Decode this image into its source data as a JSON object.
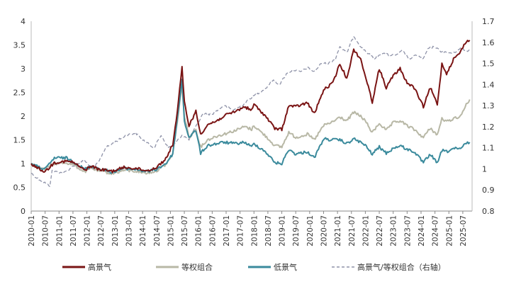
{
  "chart_data": {
    "type": "line",
    "title": "",
    "xlabel": "",
    "ylabel": "",
    "x_start": "2010-01",
    "x_end": "2025-10",
    "x_tick_labels": [
      "2010-01",
      "2010-07",
      "2011-01",
      "2011-07",
      "2012-01",
      "2012-07",
      "2013-01",
      "2013-07",
      "2014-01",
      "2014-07",
      "2015-01",
      "2015-07",
      "2016-01",
      "2016-07",
      "2017-01",
      "2017-07",
      "2018-01",
      "2018-07",
      "2019-01",
      "2019-07",
      "2020-01",
      "2020-07",
      "2021-01",
      "2021-07",
      "2022-01",
      "2022-07",
      "2023-01",
      "2023-07",
      "2024-01",
      "2024-07",
      "2025-01",
      "2025-07"
    ],
    "y_left": {
      "min": 0,
      "max": 4,
      "ticks": [
        "0",
        "0.5",
        "1",
        "1.5",
        "2",
        "2.5",
        "3",
        "3.5",
        "4"
      ]
    },
    "y_right": {
      "min": 0.8,
      "max": 1.7,
      "ticks": [
        "0.8",
        "0.9",
        "1",
        "1.1",
        "1.2",
        "1.3",
        "1.4",
        "1.5",
        "1.6",
        "1.7"
      ]
    },
    "series": [
      {
        "name": "高景气",
        "axis": "left",
        "color": "#7a1414",
        "dash": "none",
        "points": [
          [
            "2010-01",
            1.0
          ],
          [
            "2010-04",
            0.9
          ],
          [
            "2010-07",
            0.83
          ],
          [
            "2010-11",
            1.02
          ],
          [
            "2011-04",
            1.05
          ],
          [
            "2011-07",
            1.03
          ],
          [
            "2011-12",
            0.86
          ],
          [
            "2012-03",
            0.95
          ],
          [
            "2012-06",
            0.88
          ],
          [
            "2012-12",
            0.84
          ],
          [
            "2013-05",
            0.92
          ],
          [
            "2013-10",
            0.9
          ],
          [
            "2014-03",
            0.85
          ],
          [
            "2014-07",
            0.92
          ],
          [
            "2014-11",
            1.1
          ],
          [
            "2015-02",
            1.4
          ],
          [
            "2015-04",
            2.1
          ],
          [
            "2015-06",
            3.02
          ],
          [
            "2015-07",
            2.3
          ],
          [
            "2015-09",
            1.8
          ],
          [
            "2015-12",
            2.1
          ],
          [
            "2016-02",
            1.62
          ],
          [
            "2016-05",
            1.82
          ],
          [
            "2016-09",
            1.9
          ],
          [
            "2016-12",
            2.0
          ],
          [
            "2017-05",
            2.1
          ],
          [
            "2017-09",
            2.2
          ],
          [
            "2017-12",
            2.12
          ],
          [
            "2018-01",
            2.25
          ],
          [
            "2018-06",
            2.0
          ],
          [
            "2018-10",
            1.74
          ],
          [
            "2019-01",
            1.72
          ],
          [
            "2019-04",
            2.22
          ],
          [
            "2019-07",
            2.2
          ],
          [
            "2019-12",
            2.28
          ],
          [
            "2020-03",
            2.05
          ],
          [
            "2020-07",
            2.55
          ],
          [
            "2020-11",
            2.7
          ],
          [
            "2021-02",
            3.1
          ],
          [
            "2021-05",
            2.8
          ],
          [
            "2021-08",
            3.4
          ],
          [
            "2021-11",
            3.2
          ],
          [
            "2022-01",
            2.85
          ],
          [
            "2022-04",
            2.3
          ],
          [
            "2022-07",
            3.0
          ],
          [
            "2022-10",
            2.6
          ],
          [
            "2023-01",
            2.85
          ],
          [
            "2023-04",
            3.0
          ],
          [
            "2023-07",
            2.7
          ],
          [
            "2023-10",
            2.6
          ],
          [
            "2024-02",
            2.2
          ],
          [
            "2024-05",
            2.6
          ],
          [
            "2024-08",
            2.25
          ],
          [
            "2024-10",
            3.1
          ],
          [
            "2024-12",
            2.9
          ],
          [
            "2025-03",
            3.2
          ],
          [
            "2025-06",
            3.35
          ],
          [
            "2025-08",
            3.55
          ],
          [
            "2025-10",
            3.6
          ]
        ]
      },
      {
        "name": "等权组合",
        "axis": "left",
        "color": "#b8b8a6",
        "dash": "none",
        "points": [
          [
            "2010-01",
            1.0
          ],
          [
            "2010-04",
            0.92
          ],
          [
            "2010-07",
            0.88
          ],
          [
            "2010-11",
            1.0
          ],
          [
            "2011-04",
            1.02
          ],
          [
            "2011-07",
            0.98
          ],
          [
            "2011-12",
            0.83
          ],
          [
            "2012-03",
            0.9
          ],
          [
            "2012-06",
            0.85
          ],
          [
            "2012-12",
            0.79
          ],
          [
            "2013-05",
            0.86
          ],
          [
            "2013-10",
            0.84
          ],
          [
            "2014-03",
            0.8
          ],
          [
            "2014-07",
            0.85
          ],
          [
            "2014-11",
            0.98
          ],
          [
            "2015-02",
            1.2
          ],
          [
            "2015-04",
            1.9
          ],
          [
            "2015-06",
            2.65
          ],
          [
            "2015-07",
            2.0
          ],
          [
            "2015-09",
            1.55
          ],
          [
            "2015-12",
            1.72
          ],
          [
            "2016-02",
            1.35
          ],
          [
            "2016-05",
            1.5
          ],
          [
            "2016-09",
            1.58
          ],
          [
            "2016-12",
            1.62
          ],
          [
            "2017-05",
            1.7
          ],
          [
            "2017-09",
            1.78
          ],
          [
            "2017-12",
            1.72
          ],
          [
            "2018-01",
            1.8
          ],
          [
            "2018-06",
            1.58
          ],
          [
            "2018-10",
            1.38
          ],
          [
            "2019-01",
            1.35
          ],
          [
            "2019-04",
            1.66
          ],
          [
            "2019-07",
            1.55
          ],
          [
            "2019-12",
            1.62
          ],
          [
            "2020-03",
            1.5
          ],
          [
            "2020-07",
            1.8
          ],
          [
            "2020-11",
            1.88
          ],
          [
            "2021-02",
            1.98
          ],
          [
            "2021-05",
            1.9
          ],
          [
            "2021-08",
            2.08
          ],
          [
            "2021-11",
            2.0
          ],
          [
            "2022-01",
            1.9
          ],
          [
            "2022-04",
            1.65
          ],
          [
            "2022-07",
            1.85
          ],
          [
            "2022-10",
            1.7
          ],
          [
            "2023-01",
            1.86
          ],
          [
            "2023-04",
            1.9
          ],
          [
            "2023-07",
            1.8
          ],
          [
            "2023-10",
            1.72
          ],
          [
            "2024-02",
            1.55
          ],
          [
            "2024-05",
            1.75
          ],
          [
            "2024-08",
            1.6
          ],
          [
            "2024-10",
            1.95
          ],
          [
            "2024-12",
            1.88
          ],
          [
            "2025-03",
            1.95
          ],
          [
            "2025-06",
            2.0
          ],
          [
            "2025-08",
            2.2
          ],
          [
            "2025-10",
            2.35
          ]
        ]
      },
      {
        "name": "低景气",
        "axis": "left",
        "color": "#3a8a9c",
        "dash": "none",
        "points": [
          [
            "2010-01",
            1.0
          ],
          [
            "2010-04",
            0.93
          ],
          [
            "2010-07",
            0.88
          ],
          [
            "2010-11",
            1.12
          ],
          [
            "2011-04",
            1.12
          ],
          [
            "2011-07",
            1.05
          ],
          [
            "2011-12",
            0.88
          ],
          [
            "2012-03",
            0.95
          ],
          [
            "2012-06",
            0.9
          ],
          [
            "2012-12",
            0.82
          ],
          [
            "2013-05",
            0.9
          ],
          [
            "2013-10",
            0.88
          ],
          [
            "2014-03",
            0.83
          ],
          [
            "2014-07",
            0.88
          ],
          [
            "2014-11",
            1.0
          ],
          [
            "2015-02",
            1.2
          ],
          [
            "2015-04",
            1.95
          ],
          [
            "2015-06",
            2.78
          ],
          [
            "2015-07",
            1.9
          ],
          [
            "2015-09",
            1.55
          ],
          [
            "2015-12",
            1.7
          ],
          [
            "2016-02",
            1.22
          ],
          [
            "2016-05",
            1.38
          ],
          [
            "2016-09",
            1.42
          ],
          [
            "2016-12",
            1.45
          ],
          [
            "2017-05",
            1.42
          ],
          [
            "2017-09",
            1.45
          ],
          [
            "2017-12",
            1.35
          ],
          [
            "2018-01",
            1.42
          ],
          [
            "2018-06",
            1.25
          ],
          [
            "2018-10",
            1.02
          ],
          [
            "2019-01",
            1.0
          ],
          [
            "2019-04",
            1.3
          ],
          [
            "2019-07",
            1.2
          ],
          [
            "2019-12",
            1.25
          ],
          [
            "2020-03",
            1.12
          ],
          [
            "2020-07",
            1.52
          ],
          [
            "2020-11",
            1.5
          ],
          [
            "2021-02",
            1.5
          ],
          [
            "2021-05",
            1.42
          ],
          [
            "2021-08",
            1.52
          ],
          [
            "2021-11",
            1.45
          ],
          [
            "2022-01",
            1.38
          ],
          [
            "2022-04",
            1.2
          ],
          [
            "2022-07",
            1.35
          ],
          [
            "2022-10",
            1.22
          ],
          [
            "2023-01",
            1.32
          ],
          [
            "2023-04",
            1.38
          ],
          [
            "2023-07",
            1.3
          ],
          [
            "2023-10",
            1.25
          ],
          [
            "2024-02",
            1.02
          ],
          [
            "2024-05",
            1.2
          ],
          [
            "2024-08",
            1.0
          ],
          [
            "2024-10",
            1.28
          ],
          [
            "2024-12",
            1.25
          ],
          [
            "2025-03",
            1.32
          ],
          [
            "2025-06",
            1.3
          ],
          [
            "2025-08",
            1.42
          ],
          [
            "2025-10",
            1.45
          ]
        ]
      },
      {
        "name": "高景气/等权组合（右轴）",
        "axis": "right",
        "color": "#8e92a8",
        "dash": "5,3",
        "points": [
          [
            "2010-01",
            0.98
          ],
          [
            "2010-03",
            0.96
          ],
          [
            "2010-06",
            0.94
          ],
          [
            "2010-09",
            0.92
          ],
          [
            "2010-10",
            0.99
          ],
          [
            "2011-03",
            0.98
          ],
          [
            "2011-08",
            1.02
          ],
          [
            "2011-12",
            1.04
          ],
          [
            "2012-03",
            1.0
          ],
          [
            "2012-06",
            1.03
          ],
          [
            "2012-09",
            1.1
          ],
          [
            "2012-12",
            1.12
          ],
          [
            "2013-03",
            1.14
          ],
          [
            "2013-06",
            1.16
          ],
          [
            "2013-10",
            1.17
          ],
          [
            "2014-02",
            1.13
          ],
          [
            "2014-06",
            1.1
          ],
          [
            "2014-09",
            1.16
          ],
          [
            "2014-12",
            1.1
          ],
          [
            "2015-03",
            1.12
          ],
          [
            "2015-06",
            1.16
          ],
          [
            "2015-09",
            1.14
          ],
          [
            "2015-12",
            1.2
          ],
          [
            "2016-03",
            1.26
          ],
          [
            "2016-07",
            1.26
          ],
          [
            "2016-12",
            1.3
          ],
          [
            "2017-04",
            1.28
          ],
          [
            "2017-08",
            1.3
          ],
          [
            "2017-12",
            1.34
          ],
          [
            "2018-03",
            1.36
          ],
          [
            "2018-06",
            1.38
          ],
          [
            "2018-09",
            1.42
          ],
          [
            "2018-12",
            1.4
          ],
          [
            "2019-03",
            1.45
          ],
          [
            "2019-06",
            1.47
          ],
          [
            "2019-09",
            1.46
          ],
          [
            "2019-12",
            1.48
          ],
          [
            "2020-03",
            1.46
          ],
          [
            "2020-06",
            1.5
          ],
          [
            "2020-09",
            1.5
          ],
          [
            "2020-12",
            1.52
          ],
          [
            "2021-02",
            1.58
          ],
          [
            "2021-05",
            1.55
          ],
          [
            "2021-08",
            1.63
          ],
          [
            "2021-11",
            1.58
          ],
          [
            "2022-02",
            1.55
          ],
          [
            "2022-05",
            1.52
          ],
          [
            "2022-08",
            1.55
          ],
          [
            "2022-11",
            1.54
          ],
          [
            "2023-02",
            1.54
          ],
          [
            "2023-05",
            1.56
          ],
          [
            "2023-08",
            1.52
          ],
          [
            "2023-11",
            1.54
          ],
          [
            "2024-02",
            1.52
          ],
          [
            "2024-04",
            1.57
          ],
          [
            "2024-07",
            1.58
          ],
          [
            "2024-09",
            1.56
          ],
          [
            "2024-12",
            1.55
          ],
          [
            "2025-03",
            1.55
          ],
          [
            "2025-06",
            1.57
          ],
          [
            "2025-09",
            1.56
          ],
          [
            "2025-10",
            1.57
          ]
        ]
      }
    ],
    "legend": {
      "placement": "bottom"
    }
  }
}
